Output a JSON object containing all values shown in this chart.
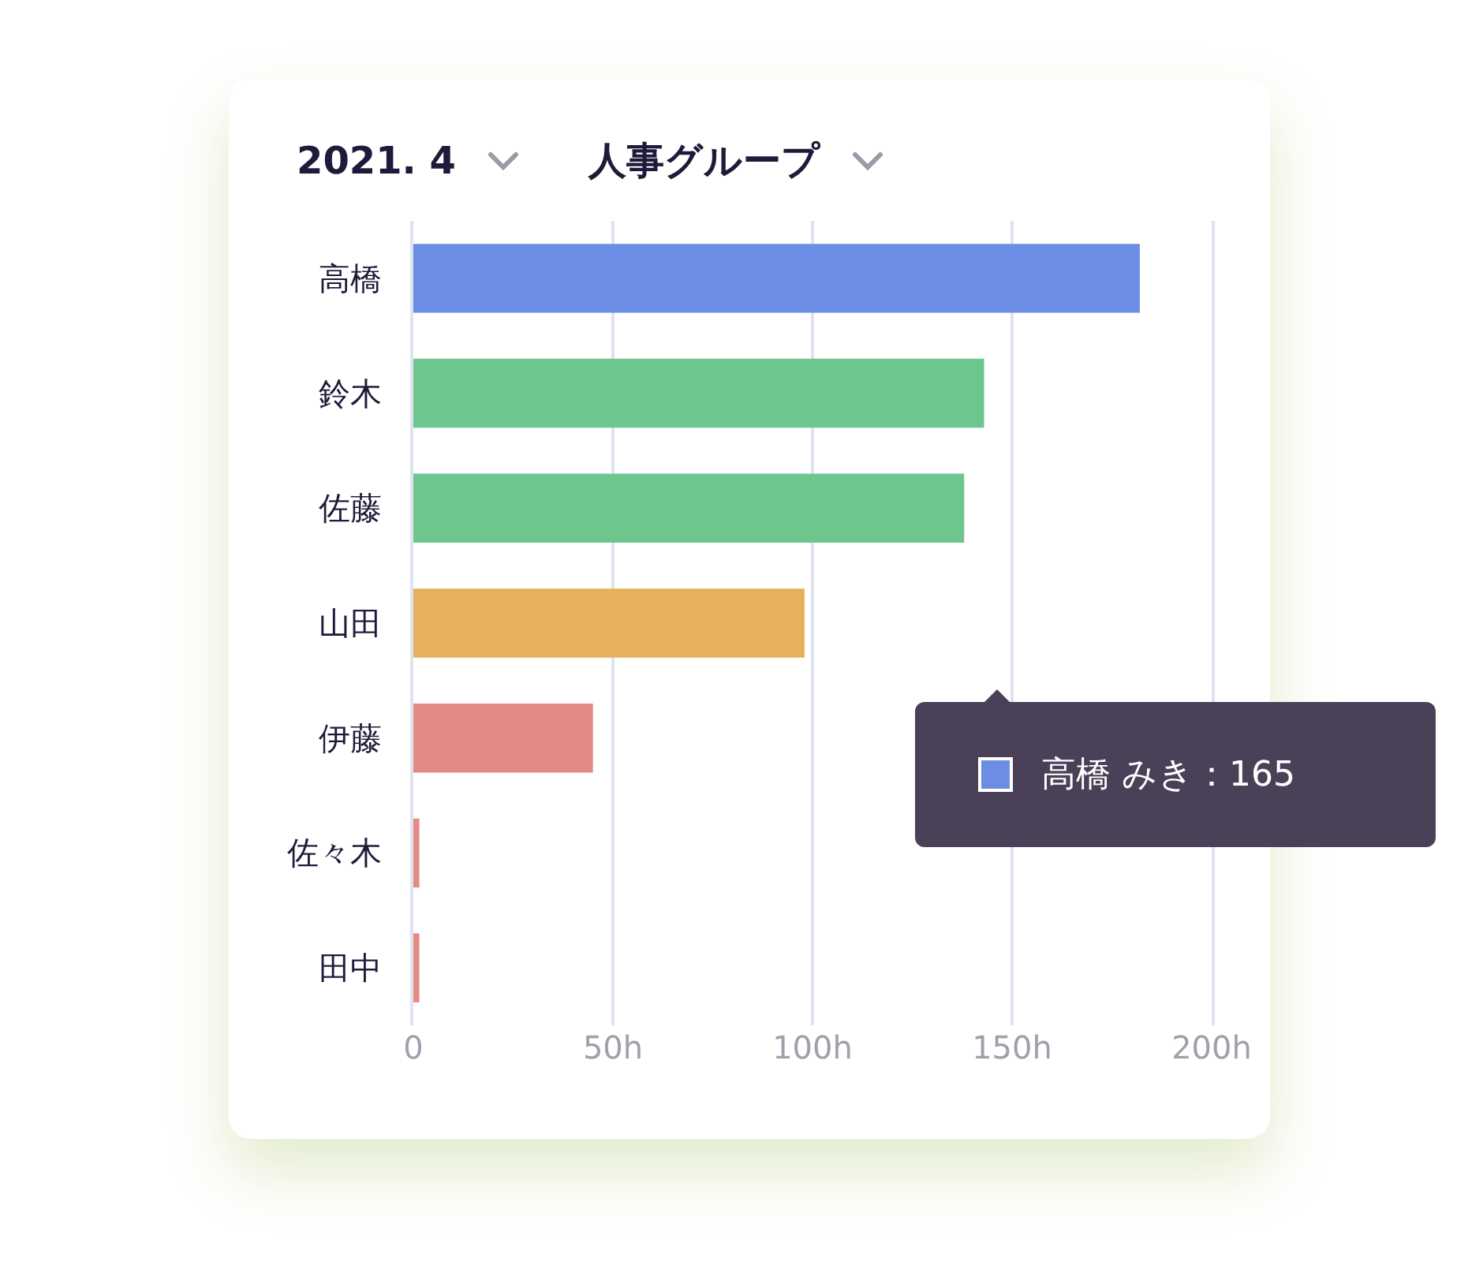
{
  "chart_data": {
    "type": "bar",
    "orientation": "horizontal",
    "title": "2021. 4",
    "subtitle": "人事グループ",
    "categories": [
      "高橋",
      "鈴木",
      "佐藤",
      "山田",
      "伊藤",
      "佐々木",
      "田中"
    ],
    "values": [
      182,
      143,
      138,
      98,
      45,
      1.5,
      1.5
    ],
    "colors": [
      "#6b8de3",
      "#6cc68e",
      "#6cc68e",
      "#e8b05a",
      "#e38a84",
      "#e38a84",
      "#e38a84"
    ],
    "xlim": [
      0,
      200
    ],
    "xticks": [
      0,
      {
        "value": 50,
        "label": "50h"
      },
      {
        "value": 100,
        "label": "100h"
      },
      {
        "value": 150,
        "label": "150h"
      },
      {
        "value": 200,
        "label": "200h"
      }
    ],
    "grid": "x",
    "annotations": [
      "高橋 みき：165"
    ]
  }
}
